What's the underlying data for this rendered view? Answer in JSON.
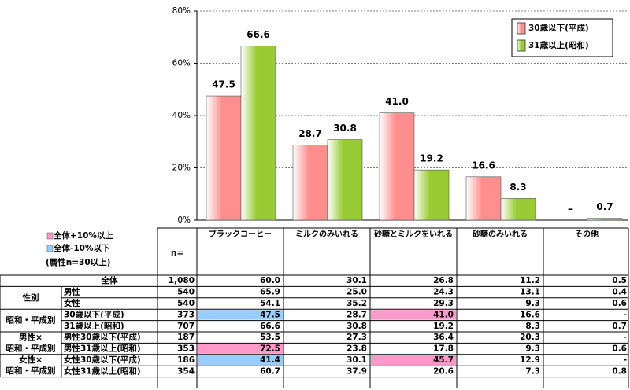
{
  "chart_data": {
    "type": "bar",
    "categories": [
      "ブラックコーヒー",
      "ミルクのみいれる",
      "砂糖とミルクをいれる",
      "砂糖のみいれる",
      "その他"
    ],
    "series": [
      {
        "name": "30歳以下(平成)",
        "color": "#ff8f8f",
        "values": [
          47.5,
          28.7,
          41.0,
          16.6,
          null
        ],
        "value_labels": [
          "47.5",
          "28.7",
          "41.0",
          "16.6",
          "–"
        ]
      },
      {
        "name": "31歳以上(昭和)",
        "color": "#99cc33",
        "values": [
          66.6,
          30.8,
          19.2,
          8.3,
          0.7
        ],
        "value_labels": [
          "66.6",
          "30.8",
          "19.2",
          "8.3",
          "0.7"
        ]
      }
    ],
    "ylim": [
      0,
      80
    ],
    "yticks": [
      {
        "value": 0,
        "label": "0%"
      },
      {
        "value": 20,
        "label": "20%"
      },
      {
        "value": 40,
        "label": "40%"
      },
      {
        "value": 60,
        "label": "60%"
      },
      {
        "value": 80,
        "label": "80%"
      }
    ],
    "grid": true,
    "legend": "upper right"
  },
  "table": {
    "legend": [
      {
        "label": "全体+10%以上",
        "color": "#ff99cc"
      },
      {
        "label": "全体-10%以下",
        "color": "#99ccff"
      }
    ],
    "note": "(属性n=30以上)",
    "n_header": "n=",
    "total": {
      "label": "全体",
      "n": "1,080",
      "values": [
        "60.0",
        "30.1",
        "26.8",
        "11.2",
        "0.5"
      ]
    },
    "groups": [
      {
        "label": [
          "性別"
        ],
        "rows": [
          {
            "label": "男性",
            "n": "540",
            "values": [
              "65.9",
              "25.0",
              "24.3",
              "13.1",
              "0.4"
            ],
            "highlight": []
          },
          {
            "label": "女性",
            "n": "540",
            "values": [
              "54.1",
              "35.2",
              "29.3",
              "9.3",
              "0.6"
            ],
            "highlight": []
          }
        ]
      },
      {
        "label": [
          "昭和・平成別"
        ],
        "rows": [
          {
            "label": "30歳以下(平成)",
            "n": "373",
            "values": [
              "47.5",
              "28.7",
              "41.0",
              "16.6",
              "-"
            ],
            "highlight": [
              {
                "col": 0,
                "legend": 1
              },
              {
                "col": 2,
                "legend": 0
              }
            ]
          },
          {
            "label": "31歳以上(昭和)",
            "n": "707",
            "values": [
              "66.6",
              "30.8",
              "19.2",
              "8.3",
              "0.7"
            ],
            "highlight": []
          }
        ]
      },
      {
        "label": [
          "男性×",
          "昭和・平成別"
        ],
        "rows": [
          {
            "label": "男性30歳以下(平成)",
            "n": "187",
            "values": [
              "53.5",
              "27.3",
              "36.4",
              "20.3",
              "-"
            ],
            "highlight": []
          },
          {
            "label": "男性31歳以上(昭和)",
            "n": "353",
            "values": [
              "72.5",
              "23.8",
              "17.8",
              "9.3",
              "0.6"
            ],
            "highlight": [
              {
                "col": 0,
                "legend": 0
              }
            ]
          }
        ]
      },
      {
        "label": [
          "女性×",
          "昭和・平成別"
        ],
        "rows": [
          {
            "label": "女性30歳以下(平成)",
            "n": "186",
            "values": [
              "41.4",
              "30.1",
              "45.7",
              "12.9",
              "-"
            ],
            "highlight": [
              {
                "col": 0,
                "legend": 1
              },
              {
                "col": 2,
                "legend": 0
              }
            ]
          },
          {
            "label": "女性31歳以上(昭和)",
            "n": "354",
            "values": [
              "60.7",
              "37.9",
              "20.6",
              "7.3",
              "0.8"
            ],
            "highlight": []
          }
        ]
      }
    ]
  }
}
